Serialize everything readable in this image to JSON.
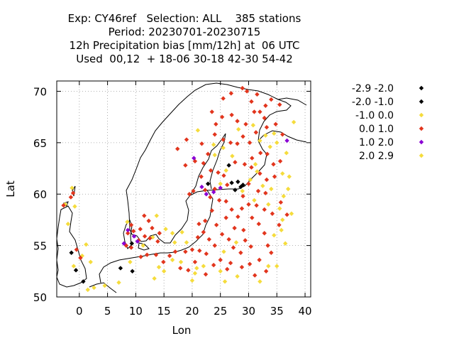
{
  "chart_data": {
    "type": "scatter",
    "title_lines": [
      "Exp: CY46ref   Selection: ALL    385 stations",
      "Period: 20230701-20230715",
      "12h Precipitation bias [mm/12h] at  06 UTC",
      "Used  00,12  + 18-06 30-18 42-30 54-42"
    ],
    "xlabel": "Lon",
    "ylabel": "Lat",
    "xlim": [
      -4,
      41
    ],
    "ylim": [
      50,
      71
    ],
    "xticks": [
      0,
      5,
      10,
      15,
      20,
      25,
      30,
      35,
      40
    ],
    "yticks": [
      50,
      55,
      60,
      65,
      70
    ],
    "grid": true,
    "legend_position": "right",
    "series": [
      {
        "name": "-2.9 -2.0",
        "color": "#000000",
        "points": [
          [
            29.0,
            60.9
          ],
          [
            28.1,
            61.2
          ]
        ]
      },
      {
        "name": "-2.0 -1.0",
        "color": "#000000",
        "points": [
          [
            22.8,
            61.0
          ],
          [
            26.5,
            62.8
          ],
          [
            27.6,
            60.4
          ],
          [
            28.6,
            60.7
          ],
          [
            9.3,
            55.2
          ],
          [
            -1.4,
            54.3
          ],
          [
            -0.6,
            52.6
          ],
          [
            0.7,
            51.5
          ],
          [
            7.3,
            52.8
          ],
          [
            9.4,
            52.5
          ],
          [
            27.0,
            61.1
          ]
        ]
      },
      {
        "name": "-1.0 0.0",
        "color": "#f5dc3c",
        "points": [
          [
            33.0,
            65.7
          ],
          [
            35.0,
            65.0
          ],
          [
            38.0,
            67.0
          ],
          [
            32.0,
            65.2
          ],
          [
            36.0,
            62.0
          ],
          [
            24.0,
            63.8
          ],
          [
            25.5,
            64.5
          ],
          [
            26.0,
            62.3
          ],
          [
            27.1,
            63.7
          ],
          [
            25.0,
            61.0
          ],
          [
            34.0,
            60.5
          ],
          [
            36.0,
            57.5
          ],
          [
            34.5,
            56.0
          ],
          [
            36.5,
            55.2
          ],
          [
            33.5,
            53.0
          ],
          [
            32.0,
            51.5
          ],
          [
            28.0,
            52.0
          ],
          [
            25.0,
            52.5
          ],
          [
            22.0,
            53.0
          ],
          [
            20.5,
            52.3
          ],
          [
            18.0,
            53.4
          ],
          [
            16.5,
            53.6
          ],
          [
            15.0,
            52.5
          ],
          [
            13.3,
            51.8
          ],
          [
            8.5,
            57.3
          ],
          [
            7.0,
            51.4
          ],
          [
            4.5,
            51.1
          ],
          [
            2.6,
            50.9
          ],
          [
            1.5,
            50.7
          ],
          [
            -2.0,
            57.1
          ],
          [
            -1.3,
            60.6
          ],
          [
            -2.5,
            59.0
          ],
          [
            2.0,
            53.4
          ],
          [
            -1.0,
            53.0
          ],
          [
            0.5,
            54.0
          ],
          [
            15.3,
            56.6
          ],
          [
            13.0,
            55.8
          ],
          [
            16.5,
            56.2
          ],
          [
            19.0,
            55.3
          ],
          [
            31.5,
            62.2
          ],
          [
            37.0,
            60.5
          ],
          [
            30.3,
            61.4
          ],
          [
            31.0,
            59.4
          ],
          [
            33.5,
            59.0
          ],
          [
            35.5,
            58.6
          ],
          [
            35.0,
            53.0
          ],
          [
            25.8,
            51.5
          ],
          [
            20.0,
            51.6
          ]
        ]
      },
      {
        "name": "0.0 1.0",
        "color": "#e2351d",
        "points": [
          [
            28.9,
            70.3
          ],
          [
            29.7,
            70.0
          ],
          [
            31.5,
            69.7
          ],
          [
            26.9,
            69.8
          ],
          [
            25.5,
            69.3
          ],
          [
            23.5,
            68.0
          ],
          [
            24.2,
            66.8
          ],
          [
            25.3,
            67.5
          ],
          [
            27.0,
            67.7
          ],
          [
            28.0,
            67.1
          ],
          [
            29.5,
            66.8
          ],
          [
            31.0,
            68.0
          ],
          [
            33.0,
            68.6
          ],
          [
            34.0,
            69.2
          ],
          [
            35.5,
            68.7
          ],
          [
            32.8,
            67.4
          ],
          [
            31.3,
            66.0
          ],
          [
            33.2,
            66.5
          ],
          [
            34.8,
            66.8
          ],
          [
            36.0,
            65.8
          ],
          [
            24.0,
            65.8
          ],
          [
            25.5,
            65.3
          ],
          [
            26.8,
            65.0
          ],
          [
            28.0,
            64.9
          ],
          [
            29.0,
            65.6
          ],
          [
            30.2,
            65.0
          ],
          [
            30.6,
            63.5
          ],
          [
            32.1,
            64.0
          ],
          [
            33.3,
            63.9
          ],
          [
            34.4,
            62.9
          ],
          [
            35.6,
            63.2
          ],
          [
            27.6,
            63.1
          ],
          [
            29.3,
            62.9
          ],
          [
            30.5,
            62.6
          ],
          [
            32.0,
            62.0
          ],
          [
            33.2,
            61.4
          ],
          [
            34.6,
            61.7
          ],
          [
            22.0,
            63.0
          ],
          [
            23.3,
            62.3
          ],
          [
            24.6,
            62.1
          ],
          [
            25.6,
            61.8
          ],
          [
            26.2,
            60.9
          ],
          [
            24.0,
            60.5
          ],
          [
            22.3,
            60.4
          ],
          [
            20.2,
            60.3
          ],
          [
            19.5,
            60.0
          ],
          [
            29.0,
            59.8
          ],
          [
            30.0,
            59.0
          ],
          [
            31.4,
            58.9
          ],
          [
            32.8,
            58.5
          ],
          [
            34.2,
            58.1
          ],
          [
            30.6,
            57.7
          ],
          [
            31.8,
            57.1
          ],
          [
            32.8,
            56.2
          ],
          [
            33.4,
            55.0
          ],
          [
            34.0,
            54.3
          ],
          [
            29.1,
            56.5
          ],
          [
            28.1,
            57.8
          ],
          [
            27.0,
            58.5
          ],
          [
            26.0,
            59.3
          ],
          [
            24.8,
            59.4
          ],
          [
            23.5,
            58.4
          ],
          [
            22.3,
            57.4
          ],
          [
            21.2,
            57.1
          ],
          [
            26.0,
            57.7
          ],
          [
            27.5,
            56.7
          ],
          [
            25.3,
            56.1
          ],
          [
            26.5,
            55.6
          ],
          [
            24.0,
            55.0
          ],
          [
            23.0,
            55.6
          ],
          [
            22.0,
            56.3
          ],
          [
            21.0,
            55.8
          ],
          [
            27.3,
            54.8
          ],
          [
            28.6,
            54.3
          ],
          [
            30.4,
            54.9
          ],
          [
            31.9,
            53.6
          ],
          [
            33.1,
            52.5
          ],
          [
            30.2,
            53.2
          ],
          [
            28.8,
            52.9
          ],
          [
            26.8,
            53.3
          ],
          [
            25.0,
            53.6
          ],
          [
            23.8,
            53.1
          ],
          [
            22.5,
            54.2
          ],
          [
            21.3,
            54.5
          ],
          [
            20.0,
            54.6
          ],
          [
            18.8,
            54.4
          ],
          [
            17.0,
            54.4
          ],
          [
            16.0,
            54.0
          ],
          [
            14.9,
            53.4
          ],
          [
            13.6,
            54.1
          ],
          [
            12.0,
            54.1
          ],
          [
            10.9,
            53.9
          ],
          [
            9.2,
            54.8
          ],
          [
            8.3,
            55.0
          ],
          [
            10.5,
            55.5
          ],
          [
            11.6,
            55.9
          ],
          [
            12.5,
            55.7
          ],
          [
            10.8,
            56.6
          ],
          [
            9.6,
            56.4
          ],
          [
            12.9,
            56.7
          ],
          [
            13.9,
            55.4
          ],
          [
            14.2,
            56.2
          ],
          [
            11.5,
            57.9
          ],
          [
            12.3,
            57.4
          ],
          [
            9.2,
            57.0
          ],
          [
            8.6,
            56.2
          ],
          [
            -1.5,
            59.7
          ],
          [
            -2.8,
            58.9
          ],
          [
            -1.1,
            60.1
          ],
          [
            0.2,
            53.8
          ],
          [
            -0.5,
            54.6
          ],
          [
            30.0,
            61.0
          ],
          [
            31.7,
            60.3
          ],
          [
            33.0,
            60.1
          ],
          [
            35.7,
            59.2
          ],
          [
            36.8,
            58.0
          ],
          [
            35.4,
            57.0
          ],
          [
            29.4,
            55.5
          ],
          [
            24.3,
            57.0
          ],
          [
            20.5,
            53.4
          ],
          [
            19.3,
            52.6
          ],
          [
            17.9,
            52.8
          ],
          [
            22.4,
            52.2
          ],
          [
            26.2,
            52.7
          ],
          [
            31.1,
            52.1
          ],
          [
            23.2,
            59.7
          ],
          [
            21.6,
            61.7
          ],
          [
            20.5,
            63.2
          ],
          [
            19.0,
            65.3
          ],
          [
            17.4,
            64.4
          ],
          [
            18.8,
            62.8
          ],
          [
            28.8,
            58.6
          ],
          [
            22.8,
            63.9
          ],
          [
            21.7,
            64.9
          ],
          [
            32.0,
            68.0
          ],
          [
            30.5,
            69.0
          ]
        ]
      },
      {
        "name": "1.0 2.0",
        "color": "#8a00d4",
        "points": [
          [
            22.5,
            60.0
          ],
          [
            21.7,
            60.7
          ],
          [
            23.8,
            60.2
          ],
          [
            25.0,
            60.6
          ],
          [
            20.3,
            63.5
          ],
          [
            8.6,
            56.5
          ],
          [
            10.3,
            55.4
          ],
          [
            9.7,
            55.9
          ],
          [
            7.9,
            55.2
          ],
          [
            36.8,
            65.2
          ]
        ]
      },
      {
        "name": "2.0 2.9",
        "color": "#f5dc3c",
        "points": [
          [
            -0.8,
            58.8
          ],
          [
            1.2,
            55.1
          ],
          [
            9.0,
            53.4
          ],
          [
            11.3,
            55.0
          ],
          [
            13.7,
            57.9
          ],
          [
            21.0,
            66.2
          ],
          [
            23.8,
            64.8
          ],
          [
            28.2,
            66.3
          ],
          [
            30.8,
            66.7
          ],
          [
            34.5,
            65.9
          ],
          [
            36.7,
            64.0
          ],
          [
            37.2,
            61.7
          ],
          [
            32.5,
            60.8
          ],
          [
            36.2,
            59.8
          ],
          [
            37.6,
            58.1
          ],
          [
            35.8,
            56.5
          ],
          [
            25.6,
            54.4
          ],
          [
            20.8,
            52.8
          ],
          [
            14.1,
            52.9
          ],
          [
            16.9,
            55.3
          ],
          [
            18.2,
            56.3
          ],
          [
            27.8,
            55.3
          ],
          [
            28.9,
            60.3
          ],
          [
            31.2,
            62.9
          ],
          [
            33.8,
            64.6
          ]
        ]
      }
    ]
  }
}
